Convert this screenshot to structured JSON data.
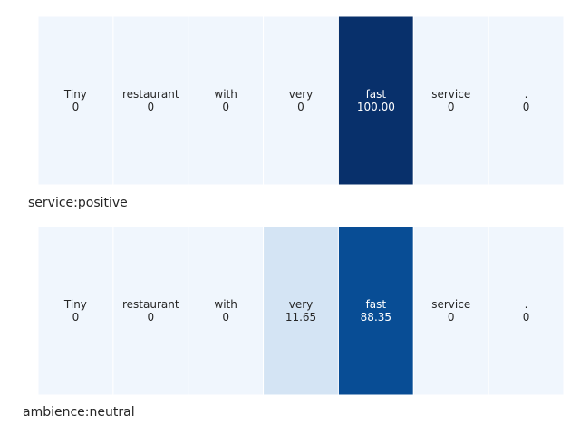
{
  "chart_data": [
    {
      "type": "heatmap",
      "label": "service:positive",
      "colormap": "Blues",
      "vmin": 0,
      "vmax": 100,
      "tokens": [
        "Tiny",
        "restaurant",
        "with",
        "very",
        "fast",
        "service",
        "."
      ],
      "values": [
        0,
        0,
        0,
        0,
        100.0,
        0,
        0
      ],
      "display_values": [
        "0",
        "0",
        "0",
        "0",
        "100.00",
        "0",
        "0"
      ]
    },
    {
      "type": "heatmap",
      "label": "ambience:neutral",
      "colormap": "Blues",
      "vmin": 0,
      "vmax": 100,
      "tokens": [
        "Tiny",
        "restaurant",
        "with",
        "very",
        "fast",
        "service",
        "."
      ],
      "values": [
        0,
        0,
        0,
        11.65,
        88.35,
        0,
        0
      ],
      "display_values": [
        "0",
        "0",
        "0",
        "11.65",
        "88.35",
        "0",
        "0"
      ]
    }
  ],
  "colors": {
    "low": "#f0f6fd",
    "mid": "#d9e7f5",
    "high": "#08306b",
    "text_dark": "#262626",
    "text_light": "#ffffff"
  }
}
